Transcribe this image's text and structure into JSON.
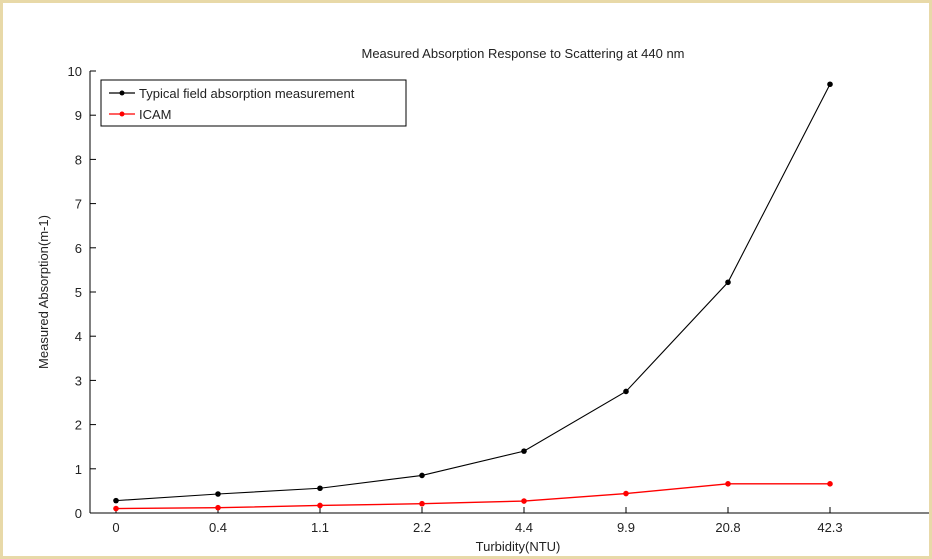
{
  "chart_data": {
    "type": "line",
    "title": "Measured Absorption Response to Scattering at 440 nm",
    "xlabel": "Turbidity(NTU)",
    "ylabel": "Measured Absorption(m-1)",
    "categories": [
      "0",
      "0.4",
      "1.1",
      "2.2",
      "4.4",
      "9.9",
      "20.8",
      "42.3"
    ],
    "ylim": [
      0,
      10
    ],
    "yticks": [
      0,
      1,
      2,
      3,
      4,
      5,
      6,
      7,
      8,
      9,
      10
    ],
    "grid": false,
    "legend_position": "top-left",
    "series": [
      {
        "name": "Typical field absorption measurement",
        "color": "#000000",
        "values": [
          0.28,
          0.43,
          0.56,
          0.85,
          1.4,
          2.75,
          5.22,
          9.7
        ]
      },
      {
        "name": "ICAM",
        "color": "#ff0000",
        "values": [
          0.1,
          0.12,
          0.17,
          0.21,
          0.27,
          0.44,
          0.66,
          0.66
        ]
      }
    ]
  }
}
